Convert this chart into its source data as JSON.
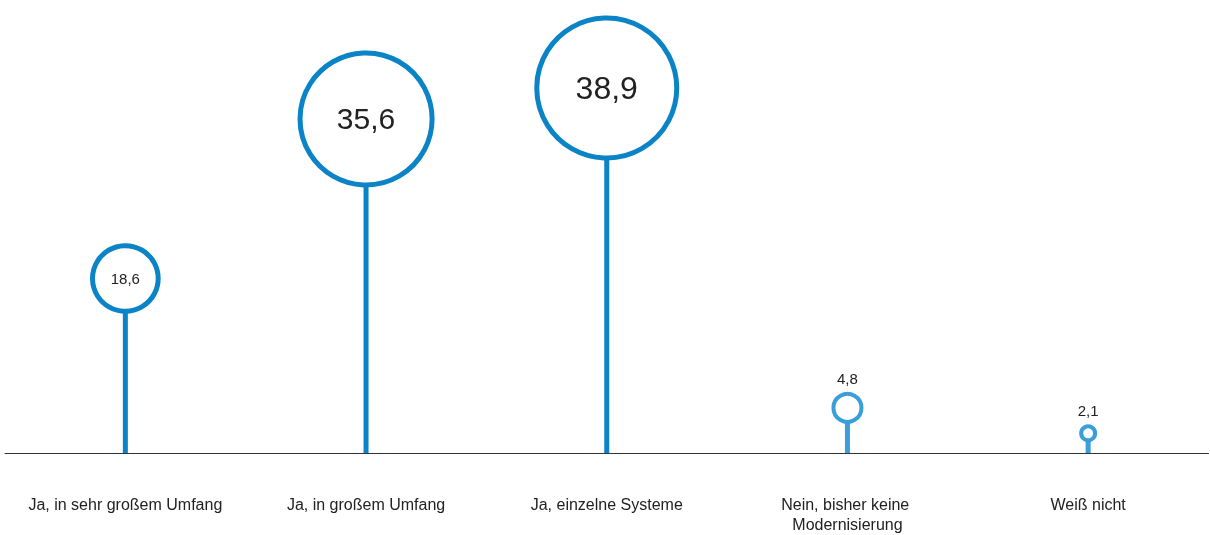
{
  "chart_data": {
    "type": "lollipop",
    "categories": [
      "Ja, in sehr großem Umfang",
      "Ja, in großem Umfang",
      "Ja, einzelne Systeme",
      "Nein, bisher keine Modernisierung",
      "Weiß nicht"
    ],
    "values": [
      18.6,
      35.6,
      38.9,
      4.8,
      2.1
    ],
    "value_labels": [
      "18,6",
      "35,6",
      "38,9",
      "4,8",
      "2,1"
    ],
    "colors": [
      "#0a84c6",
      "#0a84c6",
      "#0a84c6",
      "#3a9ed8",
      "#3a9ed8"
    ],
    "sizes": [
      0.22,
      0.89,
      1,
      0.04,
      0.01
    ],
    "marker": "circle"
  }
}
